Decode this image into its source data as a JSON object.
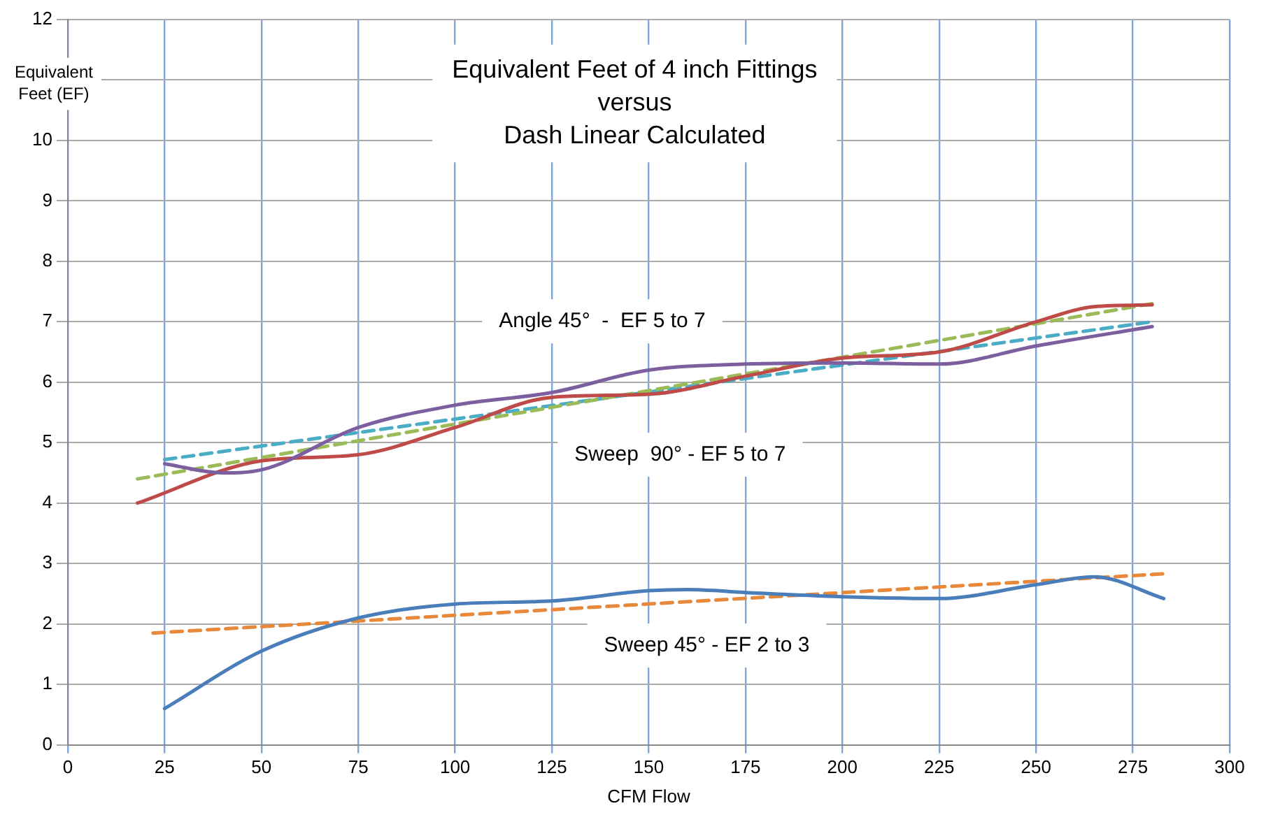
{
  "chart_data": {
    "type": "line",
    "title": "Equivalent Feet of 4 inch Fittings\nversus\nDash Linear Calculated",
    "xlabel": "CFM Flow",
    "ylabel": "Equivalent\nFeet (EF)",
    "xlim": [
      0,
      300
    ],
    "xticks": [
      0,
      25,
      50,
      75,
      100,
      125,
      150,
      175,
      200,
      225,
      250,
      275,
      300
    ],
    "ylim": [
      0,
      12
    ],
    "yticks": [
      0,
      1,
      2,
      3,
      4,
      5,
      6,
      7,
      8,
      9,
      10,
      {
        "value": 11,
        "label": null
      },
      12
    ],
    "grid": true,
    "legend": false,
    "marker": "none",
    "series": [
      {
        "color": "#4a7ebb",
        "line_style": "solid",
        "x": [
          25,
          50,
          75,
          100,
          125,
          150,
          160,
          175,
          200,
          225,
          250,
          265,
          283
        ],
        "values": [
          0.6,
          1.55,
          2.1,
          2.33,
          2.38,
          2.55,
          2.57,
          2.52,
          2.45,
          2.42,
          2.65,
          2.78,
          2.42
        ]
      },
      {
        "color": "#e8883a",
        "line_style": "dashed",
        "x": [
          22,
          283
        ],
        "values": [
          1.85,
          2.83
        ]
      },
      {
        "color": "#7d5fa0",
        "line_style": "solid",
        "x": [
          25,
          40,
          50,
          75,
          100,
          125,
          150,
          175,
          200,
          225,
          250,
          280
        ],
        "values": [
          4.65,
          4.5,
          4.55,
          5.25,
          5.62,
          5.83,
          6.2,
          6.3,
          6.32,
          6.3,
          6.6,
          6.92
        ]
      },
      {
        "color": "#be4b48",
        "line_style": "solid",
        "x": [
          18,
          50,
          75,
          100,
          125,
          150,
          175,
          200,
          225,
          250,
          265,
          280
        ],
        "values": [
          4.0,
          4.7,
          4.8,
          5.25,
          5.75,
          5.8,
          6.1,
          6.4,
          6.5,
          7.0,
          7.25,
          7.28
        ]
      },
      {
        "color": "#9bbb59",
        "line_style": "dashed",
        "x": [
          18,
          280
        ],
        "values": [
          4.4,
          7.3
        ]
      },
      {
        "color": "#4bacc6",
        "line_style": "dashed",
        "x": [
          25,
          280
        ],
        "values": [
          4.72,
          7.0
        ]
      }
    ],
    "annotations": [
      "Angle 45°  -  EF 5 to 7",
      "Sweep  90° - EF 5 to 7",
      "Sweep 45° - EF 2 to 3"
    ]
  }
}
